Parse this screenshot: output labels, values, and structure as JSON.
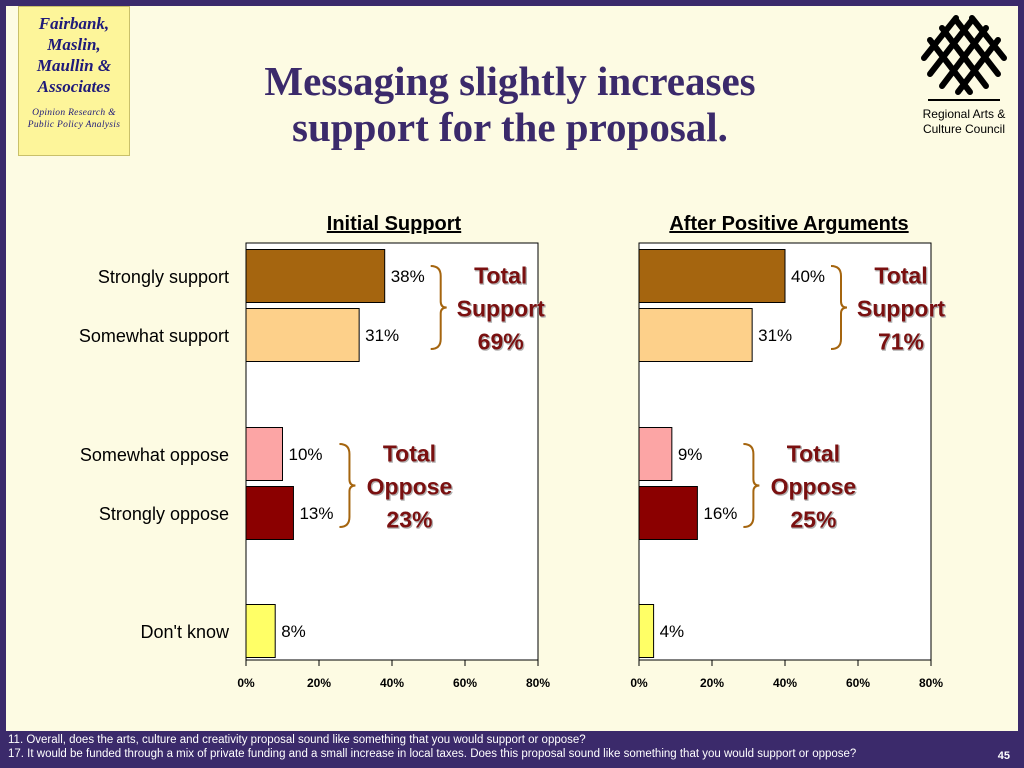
{
  "header": {
    "firm_name": "Fairbank, Maslin, Maullin & Associates",
    "firm_lines": [
      "Fairbank,",
      "Maslin,",
      "Maullin &",
      "Associates"
    ],
    "firm_tagline_lines": [
      "Opinion Research &",
      "Public Policy Analysis"
    ],
    "title_lines": [
      "Messaging slightly increases",
      "support for the proposal."
    ],
    "org_lines": [
      "Regional Arts &",
      "Culture Council"
    ],
    "logo_icon": "woven-lattice-icon"
  },
  "chart_data": [
    {
      "type": "bar",
      "orientation": "horizontal",
      "title": "Initial Support",
      "categories": [
        "Strongly support",
        "Somewhat support",
        "Somewhat oppose",
        "Strongly oppose",
        "Don't know"
      ],
      "values": [
        38,
        31,
        10,
        13,
        8
      ],
      "value_labels": [
        "38%",
        "31%",
        "10%",
        "13%",
        "8%"
      ],
      "xlim": [
        0,
        80
      ],
      "xticks": [
        "0%",
        "20%",
        "40%",
        "60%",
        "80%"
      ],
      "grid": false,
      "annotations": [
        {
          "lines": [
            "Total",
            "Support",
            "69%"
          ],
          "covers": [
            "Strongly support",
            "Somewhat support"
          ],
          "color": "#7a1010"
        },
        {
          "lines": [
            "Total",
            "Oppose",
            "23%"
          ],
          "covers": [
            "Somewhat oppose",
            "Strongly oppose"
          ],
          "color": "#7a1010"
        }
      ]
    },
    {
      "type": "bar",
      "orientation": "horizontal",
      "title": "After Positive Arguments",
      "categories": [
        "Strongly support",
        "Somewhat support",
        "Somewhat oppose",
        "Strongly oppose",
        "Don't know"
      ],
      "values": [
        40,
        31,
        9,
        16,
        4
      ],
      "value_labels": [
        "40%",
        "31%",
        "9%",
        "16%",
        "4%"
      ],
      "xlim": [
        0,
        80
      ],
      "xticks": [
        "0%",
        "20%",
        "40%",
        "60%",
        "80%"
      ],
      "grid": false,
      "annotations": [
        {
          "lines": [
            "Total",
            "Support",
            "71%"
          ],
          "covers": [
            "Strongly support",
            "Somewhat support"
          ],
          "color": "#7a1010"
        },
        {
          "lines": [
            "Total",
            "Oppose",
            "25%"
          ],
          "covers": [
            "Somewhat oppose",
            "Strongly oppose"
          ],
          "color": "#7a1010"
        }
      ]
    }
  ],
  "bar_colors": [
    "#a5650f",
    "#fdd08a",
    "#fca5a5",
    "#8b0000",
    "#ffff66"
  ],
  "bracket_color": "#a5650f",
  "footer": {
    "question_1": "11. Overall, does the arts, culture and creativity proposal sound like something that you would support or oppose?",
    "question_2": "17. It would be funded through a mix of private funding and a small increase in local taxes.   Does this proposal sound like something that you would support or oppose?",
    "page_number": "45"
  }
}
